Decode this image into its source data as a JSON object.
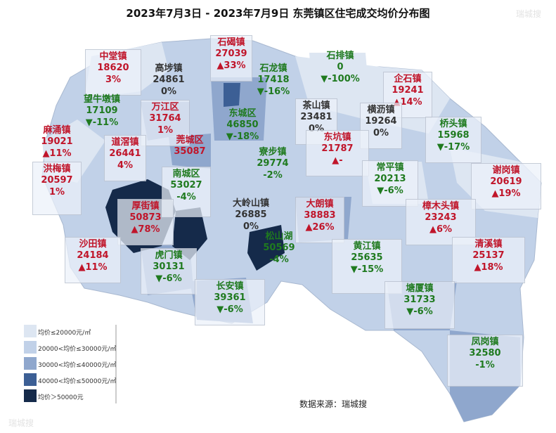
{
  "title": "2023年7月3日 - 2023年7月9日 东莞镇区住宅成交均价分布图",
  "source": "数据来源：瑞城搜",
  "watermark": "瑞城搜",
  "legend": [
    {
      "label": "均价≤20000元/㎡",
      "color": "#dde6f2"
    },
    {
      "label": "20000<均价≤30000元/㎡",
      "color": "#c1d1e8"
    },
    {
      "label": "30000<均价≤40000元/㎡",
      "color": "#8fa7cd"
    },
    {
      "label": "40000<均价≤50000元/㎡",
      "color": "#3c5f95"
    },
    {
      "label": "均价＞50000元",
      "color": "#152a4a"
    }
  ],
  "towns": [
    {
      "name": "石碣镇",
      "price": "27039",
      "change": "▲33%",
      "trend": "up"
    },
    {
      "name": "中堂镇",
      "price": "18620",
      "change": "3%",
      "trend": "up"
    },
    {
      "name": "高埗镇",
      "price": "24861",
      "change": "0%",
      "trend": "flat"
    },
    {
      "name": "石龙镇",
      "price": "17418",
      "change": "▼-16%",
      "trend": "down"
    },
    {
      "name": "石排镇",
      "price": "0",
      "change": "▼-100%",
      "trend": "down"
    },
    {
      "name": "企石镇",
      "price": "19241",
      "change": "▲14%",
      "trend": "up"
    },
    {
      "name": "望牛墩镇",
      "price": "17109",
      "change": "▼-11%",
      "trend": "down"
    },
    {
      "name": "万江区",
      "price": "31764",
      "change": "1%",
      "trend": "up"
    },
    {
      "name": "东城区",
      "price": "46850",
      "change": "▼-18%",
      "trend": "down"
    },
    {
      "name": "茶山镇",
      "price": "23481",
      "change": "0%",
      "trend": "flat"
    },
    {
      "name": "横沥镇",
      "price": "19264",
      "change": "0%",
      "trend": "flat"
    },
    {
      "name": "桥头镇",
      "price": "15968",
      "change": "▼-17%",
      "trend": "down"
    },
    {
      "name": "麻涌镇",
      "price": "19021",
      "change": "▲11%",
      "trend": "up"
    },
    {
      "name": "道滘镇",
      "price": "26441",
      "change": "4%",
      "trend": "up"
    },
    {
      "name": "莞城区",
      "price": "35087",
      "change": "",
      "trend": "up"
    },
    {
      "name": "寮步镇",
      "price": "29774",
      "change": "-2%",
      "trend": "down"
    },
    {
      "name": "东坑镇",
      "price": "21787",
      "change": "▲-",
      "trend": "up"
    },
    {
      "name": "洪梅镇",
      "price": "20597",
      "change": "1%",
      "trend": "up"
    },
    {
      "name": "南城区",
      "price": "53027",
      "change": "-4%",
      "trend": "down"
    },
    {
      "name": "常平镇",
      "price": "20213",
      "change": "▼-6%",
      "trend": "down"
    },
    {
      "name": "谢岗镇",
      "price": "20619",
      "change": "▲19%",
      "trend": "up"
    },
    {
      "name": "厚街镇",
      "price": "50873",
      "change": "▲78%",
      "trend": "up"
    },
    {
      "name": "大岭山镇",
      "price": "26885",
      "change": "0%",
      "trend": "flat"
    },
    {
      "name": "大朗镇",
      "price": "38883",
      "change": "▲26%",
      "trend": "up"
    },
    {
      "name": "樟木头镇",
      "price": "23243",
      "change": "▲6%",
      "trend": "up"
    },
    {
      "name": "松山湖",
      "price": "50569",
      "change": "-4%",
      "trend": "down"
    },
    {
      "name": "沙田镇",
      "price": "24184",
      "change": "▲11%",
      "trend": "up"
    },
    {
      "name": "虎门镇",
      "price": "30131",
      "change": "▼-6%",
      "trend": "down"
    },
    {
      "name": "黄江镇",
      "price": "25635",
      "change": "▼-15%",
      "trend": "down"
    },
    {
      "name": "清溪镇",
      "price": "25137",
      "change": "▲18%",
      "trend": "up"
    },
    {
      "name": "长安镇",
      "price": "39361",
      "change": "▼-6%",
      "trend": "down"
    },
    {
      "name": "塘厦镇",
      "price": "31733",
      "change": "▼-6%",
      "trend": "down"
    },
    {
      "name": "凤岗镇",
      "price": "32580",
      "change": "-1%",
      "trend": "down"
    }
  ]
}
